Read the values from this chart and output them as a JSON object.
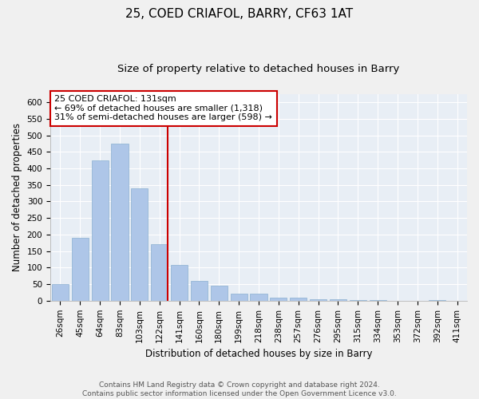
{
  "title": "25, COED CRIAFOL, BARRY, CF63 1AT",
  "subtitle": "Size of property relative to detached houses in Barry",
  "xlabel": "Distribution of detached houses by size in Barry",
  "ylabel": "Number of detached properties",
  "categories": [
    "26sqm",
    "45sqm",
    "64sqm",
    "83sqm",
    "103sqm",
    "122sqm",
    "141sqm",
    "160sqm",
    "180sqm",
    "199sqm",
    "218sqm",
    "238sqm",
    "257sqm",
    "276sqm",
    "295sqm",
    "315sqm",
    "334sqm",
    "353sqm",
    "372sqm",
    "392sqm",
    "411sqm"
  ],
  "values": [
    50,
    190,
    425,
    475,
    340,
    170,
    108,
    60,
    45,
    22,
    22,
    10,
    10,
    5,
    5,
    2,
    2,
    0,
    0,
    2,
    0
  ],
  "bar_color": "#aec6e8",
  "bar_edge_color": "#8ab0d0",
  "vline_color": "#cc0000",
  "annotation_text_lines": [
    "25 COED CRIAFOL: 131sqm",
    "← 69% of detached houses are smaller (1,318)",
    "31% of semi-detached houses are larger (598) →"
  ],
  "annotation_box_color": "#cc0000",
  "ylim": [
    0,
    625
  ],
  "yticks": [
    0,
    50,
    100,
    150,
    200,
    250,
    300,
    350,
    400,
    450,
    500,
    550,
    600
  ],
  "bg_color": "#e8eef5",
  "plot_bg_color": "#dde6f0",
  "grid_color": "#ffffff",
  "footer": "Contains HM Land Registry data © Crown copyright and database right 2024.\nContains public sector information licensed under the Open Government Licence v3.0.",
  "title_fontsize": 11,
  "subtitle_fontsize": 9.5,
  "axis_label_fontsize": 8.5,
  "tick_fontsize": 7.5,
  "annotation_fontsize": 8,
  "footer_fontsize": 6.5
}
